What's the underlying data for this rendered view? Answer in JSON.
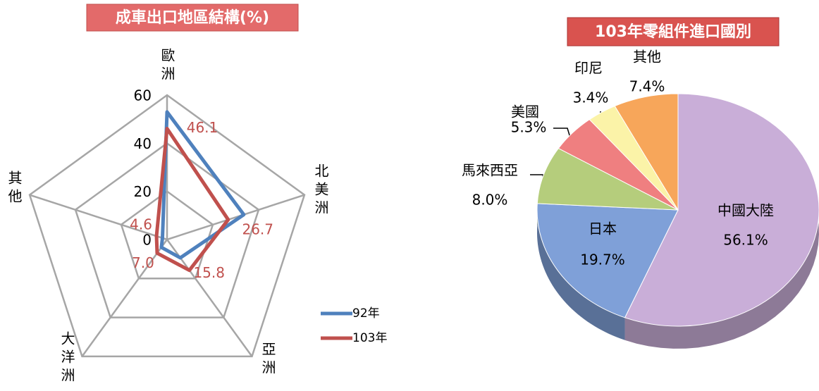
{
  "chart_data": [
    {
      "type": "radar",
      "title": "成車出口地區結構(%)",
      "categories": [
        "歐洲",
        "北美洲",
        "亞洲",
        "大洋洲",
        "其他"
      ],
      "series": [
        {
          "name": "92年",
          "color": "#4f81bd",
          "values": [
            53,
            33.5,
            9.4,
            4,
            2
          ]
        },
        {
          "name": "103年",
          "color": "#c0504d",
          "values": [
            46.1,
            26.7,
            15.8,
            7.0,
            4.6
          ],
          "value_labels": [
            "46.1",
            "26.7",
            "15.8",
            "7.0",
            "4.6"
          ]
        }
      ],
      "ylim": [
        0,
        60
      ],
      "yticks": [
        0,
        20,
        40,
        60
      ],
      "grid": true,
      "legend": "lower right"
    },
    {
      "type": "pie",
      "title": "103年零組件進口國別",
      "categories": [
        "中國大陸",
        "日本",
        "馬來西亞",
        "美國",
        "印尼",
        "其他"
      ],
      "values": [
        56.1,
        19.7,
        8.0,
        5.3,
        3.4,
        7.4
      ],
      "value_labels": [
        "56.1%",
        "19.7%",
        "8.0%",
        "5.3%",
        "3.4%",
        "7.4%"
      ],
      "colors": [
        "#c9aed8",
        "#7fa0d8",
        "#b5cd7c",
        "#ef7f80",
        "#fbf3a8",
        "#f7a65a"
      ]
    }
  ]
}
